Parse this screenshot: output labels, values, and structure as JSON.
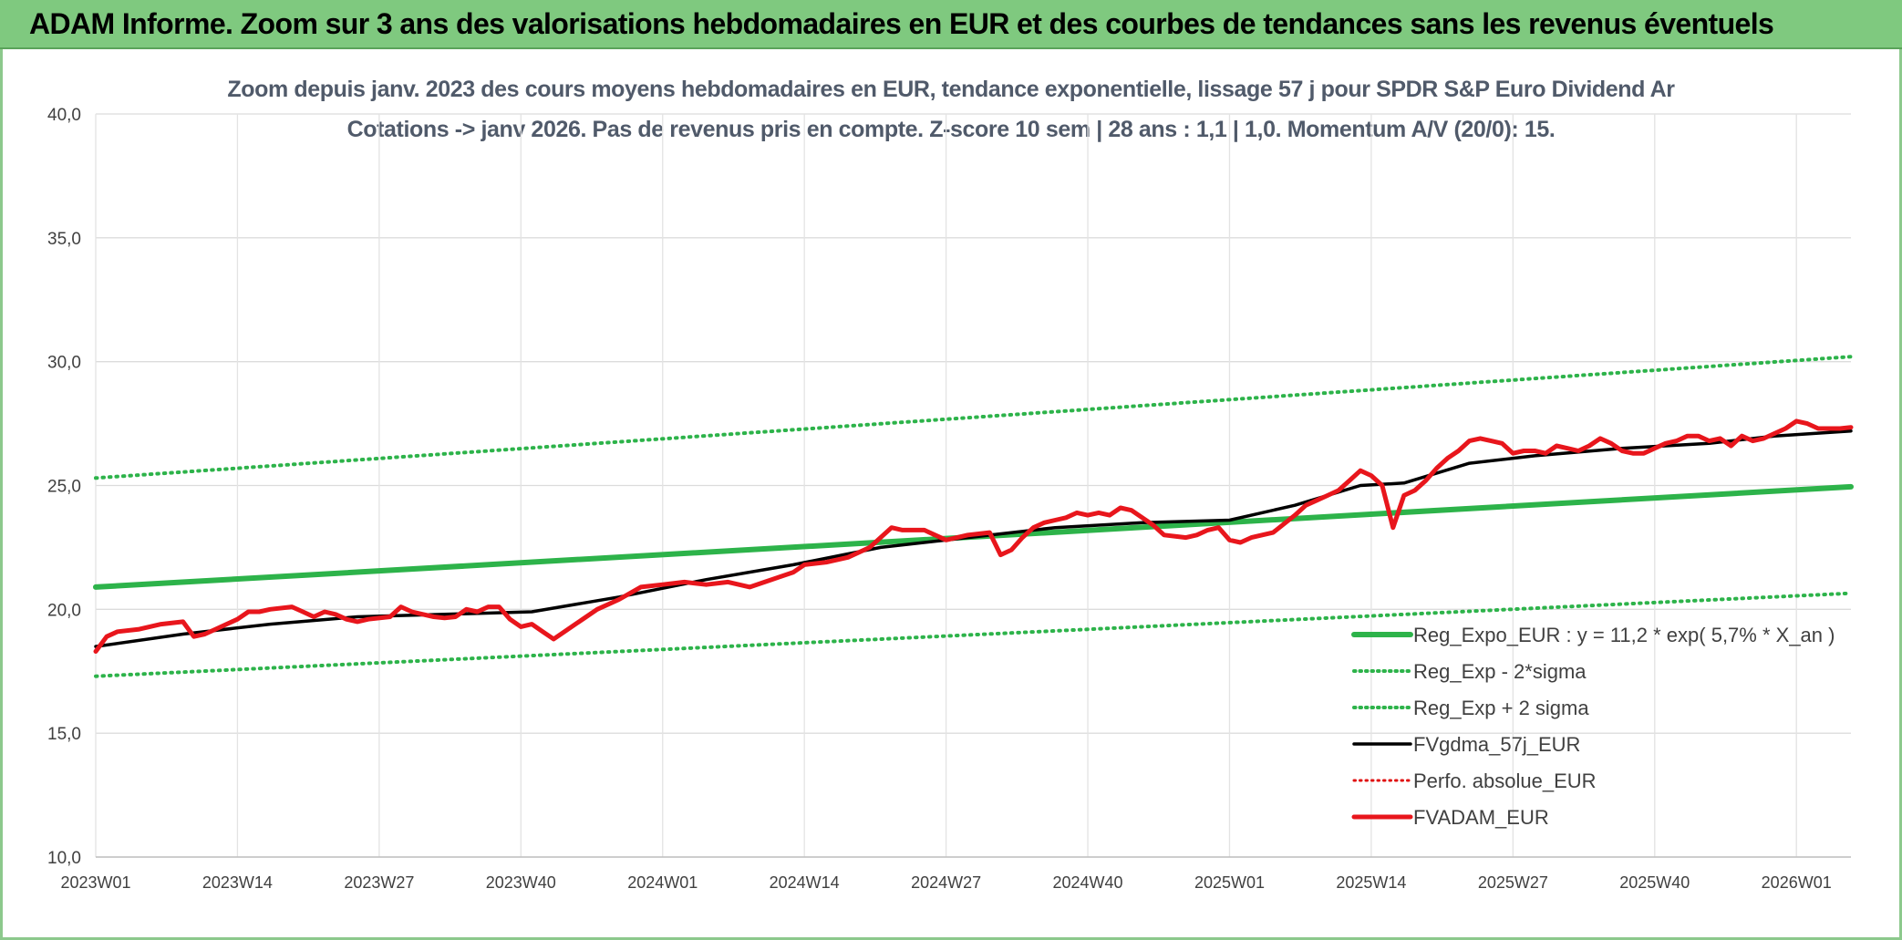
{
  "banner": {
    "title": "ADAM Informe. Zoom sur 3 ans des valorisations hebdomadaires en EUR et des courbes de tendances sans les revenus éventuels"
  },
  "chart_data": {
    "type": "line",
    "title": "Zoom depuis janv. 2023 des cours moyens hebdomadaires en EUR, tendance exponentielle, lissage 57 j pour SPDR S&P Euro Dividend Ar",
    "subtitle": "Cotations -> janv 2026. Pas de revenus pris en compte. Z-score 10 sem | 28 ans : 1,1 | 1,0. Momentum A/V (20/0): 15.",
    "xlabel": "",
    "ylabel": "",
    "ylim": [
      10,
      40
    ],
    "yticks": [
      "10,0",
      "15,0",
      "20,0",
      "25,0",
      "30,0",
      "35,0",
      "40,0"
    ],
    "x_tick_labels": [
      "2023W01",
      "2023W14",
      "2023W27",
      "2023W40",
      "2024W01",
      "2024W14",
      "2024W27",
      "2024W40",
      "2025W01",
      "2025W14",
      "2025W27",
      "2025W40",
      "2026W01"
    ],
    "x_range_weeks": [
      0,
      161
    ],
    "grid": true,
    "legend_position": "bottom-right",
    "series": [
      {
        "name": "Reg_Expo_EUR : y = 11,2 * exp( 5,7% *  X_an )",
        "color": "#2db34a",
        "style": "thick",
        "x": [
          0,
          161
        ],
        "values": [
          20.9,
          24.95
        ]
      },
      {
        "name": "Reg_Exp - 2*sigma",
        "color": "#2db34a",
        "style": "dotted",
        "x": [
          0,
          161
        ],
        "values": [
          17.3,
          20.65
        ]
      },
      {
        "name": "Reg_Exp + 2 sigma",
        "color": "#2db34a",
        "style": "dotted",
        "x": [
          0,
          161
        ],
        "values": [
          25.3,
          30.2
        ]
      },
      {
        "name": "FVgdma_57j_EUR",
        "color": "#000000",
        "style": "solid",
        "x": [
          0,
          8,
          16,
          24,
          32,
          40,
          48,
          56,
          64,
          72,
          80,
          88,
          96,
          104,
          110,
          116,
          120,
          126,
          132,
          140,
          148,
          154,
          161
        ],
        "values": [
          18.5,
          19.0,
          19.4,
          19.7,
          19.8,
          19.9,
          20.5,
          21.2,
          21.8,
          22.5,
          22.9,
          23.3,
          23.5,
          23.6,
          24.2,
          25.0,
          25.1,
          25.9,
          26.2,
          26.5,
          26.7,
          27.0,
          27.2
        ]
      },
      {
        "name": "Perfo. absolue_EUR",
        "color": "#e01010",
        "style": "dotted",
        "x": [],
        "values": []
      },
      {
        "name": "FVADAM_EUR",
        "color": "#e8161c",
        "style": "thick",
        "x": [
          0,
          1,
          2,
          4,
          6,
          8,
          9,
          10,
          11,
          13,
          14,
          15,
          16,
          18,
          19,
          20,
          21,
          22,
          23,
          24,
          25,
          27,
          28,
          29,
          30,
          31,
          32,
          33,
          34,
          35,
          36,
          37,
          38,
          39,
          40,
          41,
          42,
          43,
          44,
          45,
          46,
          48,
          50,
          52,
          54,
          56,
          58,
          60,
          62,
          64,
          65,
          67,
          69,
          71,
          73,
          74,
          76,
          78,
          80,
          82,
          83,
          84,
          85,
          86,
          87,
          88,
          89,
          90,
          91,
          92,
          93,
          94,
          95,
          96,
          97,
          98,
          100,
          101,
          102,
          103,
          104,
          105,
          106,
          107,
          108,
          110,
          111,
          112,
          113,
          114,
          115,
          116,
          117,
          118,
          119,
          120,
          121,
          122,
          123,
          124,
          125,
          126,
          127,
          128,
          129,
          130,
          131,
          132,
          133,
          134,
          135,
          136,
          137,
          138,
          139,
          140,
          141,
          142,
          143,
          144,
          145,
          146,
          147,
          148,
          149,
          150,
          151,
          152,
          153,
          154,
          155,
          156,
          157,
          158,
          159,
          160,
          161
        ],
        "values": [
          18.3,
          18.9,
          19.1,
          19.2,
          19.4,
          19.5,
          18.9,
          19.0,
          19.2,
          19.6,
          19.9,
          19.9,
          20.0,
          20.1,
          19.9,
          19.7,
          19.9,
          19.8,
          19.6,
          19.5,
          19.6,
          19.7,
          20.1,
          19.9,
          19.8,
          19.7,
          19.65,
          19.7,
          20.0,
          19.9,
          20.1,
          20.1,
          19.6,
          19.3,
          19.4,
          19.1,
          18.8,
          19.1,
          19.4,
          19.7,
          20.0,
          20.4,
          20.9,
          21.0,
          21.1,
          21.0,
          21.1,
          20.9,
          21.2,
          21.5,
          21.8,
          21.9,
          22.1,
          22.5,
          23.3,
          23.2,
          23.2,
          22.8,
          23.0,
          23.1,
          22.2,
          22.4,
          22.9,
          23.3,
          23.5,
          23.6,
          23.7,
          23.9,
          23.8,
          23.9,
          23.8,
          24.1,
          24.0,
          23.7,
          23.4,
          23.0,
          22.9,
          23.0,
          23.2,
          23.3,
          22.8,
          22.7,
          22.9,
          23.0,
          23.1,
          23.8,
          24.2,
          24.4,
          24.6,
          24.8,
          25.2,
          25.6,
          25.4,
          25.0,
          23.3,
          24.6,
          24.8,
          25.2,
          25.7,
          26.1,
          26.4,
          26.8,
          26.9,
          26.8,
          26.7,
          26.3,
          26.4,
          26.4,
          26.3,
          26.6,
          26.5,
          26.4,
          26.6,
          26.9,
          26.7,
          26.4,
          26.3,
          26.3,
          26.5,
          26.7,
          26.8,
          27.0,
          27.0,
          26.8,
          26.9,
          26.6,
          27.0,
          26.8,
          26.9,
          27.1,
          27.3,
          27.6,
          27.5,
          27.3,
          27.3,
          27.3,
          27.35
        ]
      }
    ]
  }
}
